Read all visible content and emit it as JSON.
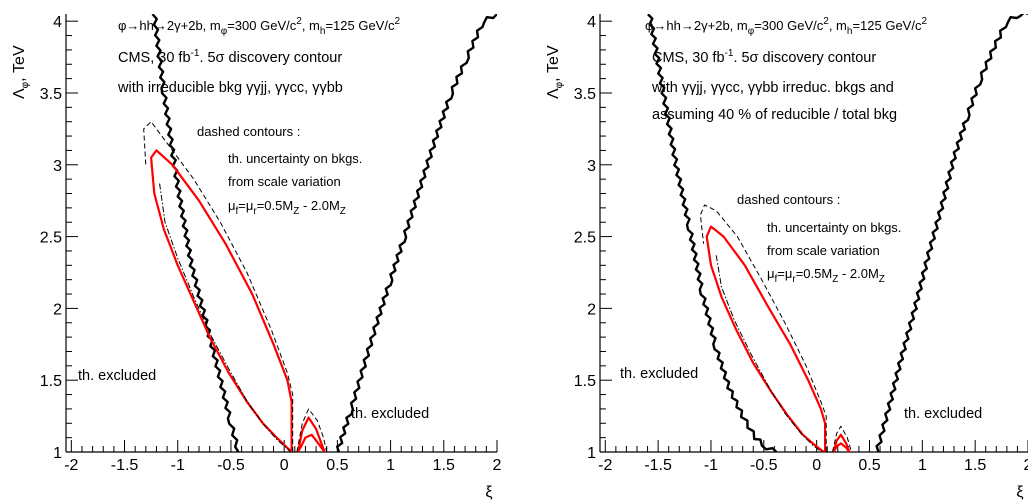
{
  "chart_data": [
    {
      "type": "line",
      "title": "",
      "xlabel": "ξ",
      "ylabel": "Λ_φ, TeV",
      "xlim": [
        -2.05,
        2.0
      ],
      "ylim": [
        1.0,
        4.05
      ],
      "x_ticks": [
        "-2",
        "-1.5",
        "-1",
        "-0.5",
        "0",
        "0.5",
        "1",
        "1.5",
        "2"
      ],
      "y_ticks": [
        "1",
        "1.5",
        "2",
        "2.5",
        "3",
        "3.5",
        "4"
      ],
      "y_tick_values": [
        1,
        1.5,
        2,
        2.5,
        3,
        3.5,
        4
      ],
      "x_tick_values": [
        -2,
        -1.5,
        -1,
        -0.5,
        0,
        0.5,
        1,
        1.5,
        2
      ],
      "process_label": {
        "base": "φ→hh→2γ+2b, m",
        "sub1": "φ",
        "mid": "=300 GeV/c",
        "sup1": "2",
        "mid2": ", m",
        "sub2": "h",
        "mid3": "=125 GeV/c",
        "sup2": "2"
      },
      "annotation_lines": [
        {
          "text": "CMS, 30 fb",
          "sup": "-1",
          "rest": ". 5σ discovery contour"
        },
        {
          "text": "with irreducible bkg γγjj, γγcc, γγbb",
          "sup": "",
          "rest": ""
        }
      ],
      "dashed_note": "dashed contours :",
      "uncertainty_lines": [
        "th. uncertainty on bkgs.",
        "from scale variation"
      ],
      "scale_line": {
        "a": "μ",
        "a_sub": "f",
        "b": "=μ",
        "b_sub": "r",
        "c": "=0.5M",
        "c_sub": "Z",
        "d": " - 2.0M",
        "d_sub": "Z"
      },
      "excluded_labels": [
        "th. excluded",
        "th. excluded"
      ],
      "series": [
        {
          "role": "excluded-boundary-left",
          "color": "#000000",
          "x": [
            -1.22,
            -1.13,
            -1.0,
            -0.87,
            -0.75,
            -0.63,
            -0.5,
            -0.43
          ],
          "y": [
            4.05,
            3.5,
            2.85,
            2.3,
            1.95,
            1.6,
            1.2,
            1.0
          ]
        },
        {
          "role": "excluded-boundary-right",
          "color": "#000000",
          "x": [
            0.5,
            0.63,
            0.75,
            0.87,
            1.0,
            1.13,
            1.28,
            1.43,
            1.57,
            1.72,
            1.87,
            2.0
          ],
          "y": [
            1.0,
            1.3,
            1.6,
            1.9,
            2.2,
            2.5,
            2.85,
            3.2,
            3.5,
            3.75,
            4.0,
            4.05
          ]
        },
        {
          "role": "discovery-contour",
          "color": "#ff0000",
          "x": [
            0.07,
            0.07,
            0.03,
            -0.1,
            -0.3,
            -0.55,
            -0.8,
            -1.05,
            -1.2,
            -1.25,
            -1.22,
            -1.13,
            -1.0,
            -0.85,
            -0.7,
            -0.52,
            -0.35,
            -0.2,
            -0.07,
            0.0,
            0.07
          ],
          "y": [
            1.0,
            1.35,
            1.5,
            1.75,
            2.1,
            2.45,
            2.75,
            3.0,
            3.1,
            3.05,
            2.8,
            2.55,
            2.3,
            2.05,
            1.8,
            1.55,
            1.35,
            1.2,
            1.1,
            1.05,
            1.0
          ]
        },
        {
          "role": "discovery-contour-small",
          "color": "#ff0000",
          "x": [
            0.13,
            0.17,
            0.23,
            0.3,
            0.35,
            0.38,
            0.33,
            0.26,
            0.2,
            0.16,
            0.13
          ],
          "y": [
            1.0,
            1.15,
            1.24,
            1.16,
            1.06,
            1.0,
            1.05,
            1.12,
            1.1,
            1.04,
            1.0
          ]
        },
        {
          "role": "dashed-contour-upper",
          "color": "#000000",
          "style": "dashed",
          "x": [
            0.08,
            0.08,
            0.03,
            -0.12,
            -0.35,
            -0.6,
            -0.85,
            -1.1,
            -1.25,
            -1.32,
            -1.3
          ],
          "y": [
            1.0,
            1.4,
            1.55,
            1.85,
            2.25,
            2.6,
            2.9,
            3.15,
            3.3,
            3.25,
            3.0
          ]
        },
        {
          "role": "dashed-contour-lower",
          "color": "#000000",
          "style": "dashdot",
          "x": [
            -1.17,
            -1.12,
            -1.0,
            -0.85,
            -0.68,
            -0.5,
            -0.33,
            -0.18,
            -0.06,
            0.02,
            0.06
          ],
          "y": [
            2.87,
            2.6,
            2.35,
            2.08,
            1.8,
            1.55,
            1.33,
            1.18,
            1.08,
            1.03,
            1.0
          ]
        },
        {
          "role": "dashed-contour-small",
          "color": "#000000",
          "style": "dashed",
          "x": [
            0.12,
            0.17,
            0.23,
            0.31,
            0.37,
            0.4
          ],
          "y": [
            1.0,
            1.2,
            1.3,
            1.22,
            1.1,
            1.0
          ]
        }
      ]
    },
    {
      "type": "line",
      "title": "",
      "xlabel": "ξ",
      "ylabel": "Λ_φ, TeV",
      "xlim": [
        -2.05,
        2.0
      ],
      "ylim": [
        1.0,
        4.05
      ],
      "x_ticks": [
        "-2",
        "-1.5",
        "-1",
        "-0.5",
        "0",
        "0.5",
        "1",
        "1.5",
        "2"
      ],
      "y_ticks": [
        "1",
        "1.5",
        "2",
        "2.5",
        "3",
        "3.5",
        "4"
      ],
      "y_tick_values": [
        1,
        1.5,
        2,
        2.5,
        3,
        3.5,
        4
      ],
      "x_tick_values": [
        -2,
        -1.5,
        -1,
        -0.5,
        0,
        0.5,
        1,
        1.5,
        2
      ],
      "process_label": {
        "base": "φ→hh→2γ+2b, m",
        "sub1": "φ",
        "mid": "=300 GeV/c",
        "sup1": "2",
        "mid2": ", m",
        "sub2": "h",
        "mid3": "=125 GeV/c",
        "sup2": "2"
      },
      "annotation_lines": [
        {
          "text": "CMS, 30 fb",
          "sup": "-1",
          "rest": ". 5σ discovery contour"
        },
        {
          "text": "with γγjj, γγcc, γγbb irreduc. bkgs and",
          "sup": "",
          "rest": ""
        },
        {
          "text": "assuming 40 % of reducible / total bkg",
          "sup": "",
          "rest": ""
        }
      ],
      "dashed_note": "dashed contours :",
      "uncertainty_lines": [
        "th. uncertainty on bkgs.",
        "from scale variation"
      ],
      "scale_line": {
        "a": "μ",
        "a_sub": "f",
        "b": "=μ",
        "b_sub": "r",
        "c": "=0.5M",
        "c_sub": "Z",
        "d": " - 2.0M",
        "d_sub": "Z"
      },
      "excluded_labels": [
        "th. excluded",
        "th. excluded"
      ],
      "series": [
        {
          "role": "excluded-boundary-left",
          "color": "#000000",
          "x": [
            -1.58,
            -1.45,
            -1.33,
            -1.2,
            -1.08,
            -0.95,
            -0.83,
            -0.7,
            -0.58,
            -0.47,
            -0.38
          ],
          "y": [
            4.05,
            3.5,
            3.0,
            2.55,
            2.1,
            1.72,
            1.45,
            1.25,
            1.1,
            1.03,
            1.0
          ]
        },
        {
          "role": "excluded-boundary-right",
          "color": "#000000",
          "x": [
            0.57,
            0.68,
            0.8,
            0.93,
            1.05,
            1.18,
            1.3,
            1.43,
            1.55,
            1.68,
            1.8,
            1.93,
            2.0
          ],
          "y": [
            1.0,
            1.3,
            1.65,
            2.0,
            2.35,
            2.7,
            3.05,
            3.35,
            3.6,
            3.82,
            4.0,
            4.05,
            4.05
          ]
        },
        {
          "role": "discovery-contour",
          "color": "#ff0000",
          "x": [
            0.08,
            0.08,
            0.04,
            -0.08,
            -0.25,
            -0.45,
            -0.68,
            -0.88,
            -1.0,
            -1.04,
            -1.0,
            -0.9,
            -0.76,
            -0.6,
            -0.43,
            -0.27,
            -0.13,
            -0.02,
            0.05,
            0.08
          ],
          "y": [
            1.0,
            1.2,
            1.3,
            1.5,
            1.75,
            2.0,
            2.3,
            2.5,
            2.57,
            2.5,
            2.3,
            2.08,
            1.85,
            1.62,
            1.42,
            1.25,
            1.12,
            1.05,
            1.01,
            1.0
          ]
        },
        {
          "role": "discovery-contour-small",
          "color": "#ff0000",
          "x": [
            0.16,
            0.19,
            0.23,
            0.28,
            0.31,
            0.28,
            0.23,
            0.19,
            0.16
          ],
          "y": [
            1.0,
            1.08,
            1.12,
            1.06,
            1.0,
            1.03,
            1.06,
            1.04,
            1.0
          ]
        },
        {
          "role": "dashed-contour-upper",
          "color": "#000000",
          "style": "dashed",
          "x": [
            0.09,
            0.09,
            0.04,
            -0.1,
            -0.3,
            -0.52,
            -0.75,
            -0.95,
            -1.06,
            -1.1,
            -1.07
          ],
          "y": [
            1.0,
            1.25,
            1.35,
            1.6,
            1.9,
            2.2,
            2.5,
            2.68,
            2.72,
            2.65,
            2.45
          ]
        },
        {
          "role": "dashed-contour-lower",
          "color": "#000000",
          "style": "dashdot",
          "x": [
            -0.95,
            -0.9,
            -0.78,
            -0.62,
            -0.45,
            -0.3,
            -0.15,
            -0.04,
            0.03,
            0.07
          ],
          "y": [
            2.37,
            2.15,
            1.92,
            1.68,
            1.45,
            1.27,
            1.13,
            1.05,
            1.01,
            1.0
          ]
        },
        {
          "role": "dashed-contour-small",
          "color": "#000000",
          "style": "dashed",
          "x": [
            0.15,
            0.19,
            0.23,
            0.29,
            0.33
          ],
          "y": [
            1.0,
            1.13,
            1.18,
            1.1,
            1.0
          ]
        }
      ]
    }
  ]
}
